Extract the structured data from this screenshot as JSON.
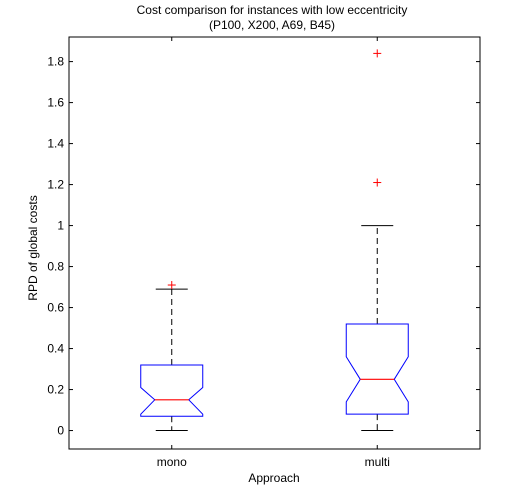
{
  "chart_data": {
    "type": "boxplot",
    "title": "Cost comparison for instances with low eccentricity",
    "subtitle": "(P100, X200, A69, B45)",
    "xlabel": "Approach",
    "ylabel": "RPD of global costs",
    "categories": [
      "mono",
      "multi"
    ],
    "ylim": [
      -0.09,
      1.92
    ],
    "yticks": [
      0,
      0.2,
      0.4,
      0.6,
      0.8,
      1.0,
      1.2,
      1.4,
      1.6,
      1.8
    ],
    "ytick_labels": [
      "0",
      "0.2",
      "0.4",
      "0.6",
      "0.8",
      "1",
      "1.2",
      "1.4",
      "1.6",
      "1.8"
    ],
    "notched": true,
    "boxes": [
      {
        "category": "mono",
        "whisker_low": 0.0,
        "q1": 0.07,
        "notch_low": 0.08,
        "median": 0.15,
        "notch_high": 0.21,
        "q3": 0.32,
        "whisker_high": 0.69,
        "outliers": [
          0.71
        ]
      },
      {
        "category": "multi",
        "whisker_low": 0.0,
        "q1": 0.08,
        "notch_low": 0.14,
        "median": 0.25,
        "notch_high": 0.36,
        "q3": 0.52,
        "whisker_high": 1.0,
        "outliers": [
          1.21,
          1.84
        ]
      }
    ],
    "colors": {
      "box": "#0000ff",
      "median": "#ff0000",
      "outlier": "#ff0000",
      "whisker": "#000000"
    }
  }
}
